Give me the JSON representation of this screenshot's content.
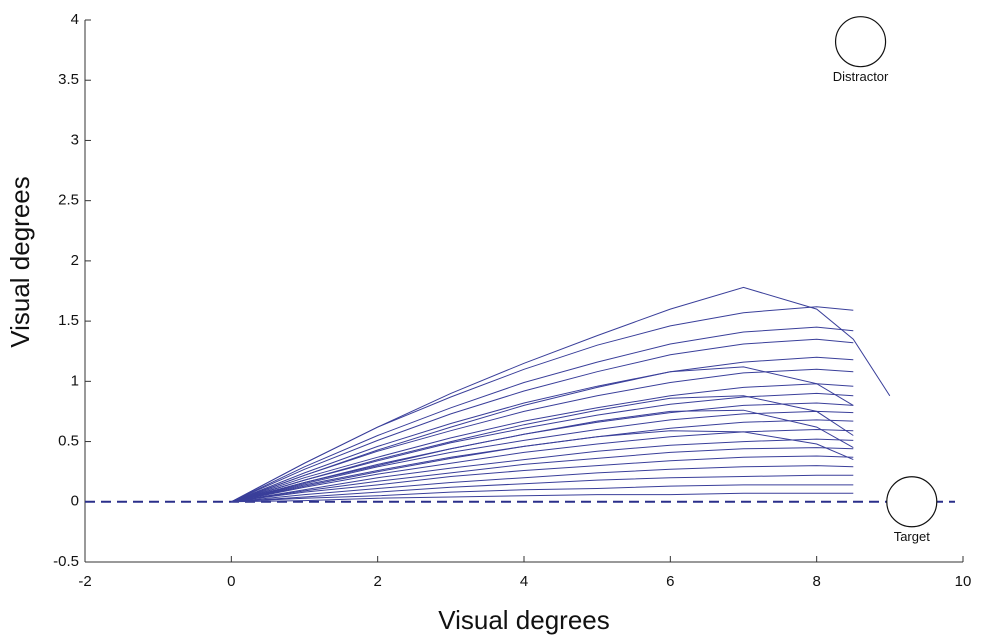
{
  "chart_data": {
    "type": "line",
    "x_label": "Visual degrees",
    "y_label": "Visual degrees",
    "xlim": [
      -2,
      10
    ],
    "xticks": [
      -2,
      0,
      2,
      4,
      6,
      8,
      10
    ],
    "ylim": [
      -0.5,
      4
    ],
    "yticks": [
      -0.5,
      0,
      0.5,
      1,
      1.5,
      2,
      2.5,
      3,
      3.5,
      4
    ],
    "color": "#3a3f9a",
    "reference_line": {
      "y": 0,
      "color": "#2a2f8a"
    },
    "annotations": [
      {
        "text": "Distractor",
        "x": 8.6,
        "y": 3.82
      },
      {
        "text": "Target",
        "x": 9.3,
        "y": 0
      }
    ],
    "x": [
      0,
      1,
      2,
      3,
      4,
      5,
      6,
      7,
      8,
      8.5,
      9
    ],
    "series": [
      {
        "values": [
          0,
          0.32,
          0.62,
          0.9,
          1.15,
          1.38,
          1.6,
          1.78,
          1.6,
          1.35,
          0.88
        ]
      },
      {
        "values": [
          0,
          0.32,
          0.62,
          0.87,
          1.1,
          1.3,
          1.46,
          1.57,
          1.62,
          1.59,
          null
        ]
      },
      {
        "values": [
          0,
          0.29,
          0.55,
          0.78,
          0.99,
          1.16,
          1.31,
          1.41,
          1.45,
          1.42,
          null
        ]
      },
      {
        "values": [
          0,
          0.27,
          0.51,
          0.73,
          0.92,
          1.08,
          1.22,
          1.31,
          1.35,
          1.32,
          null
        ]
      },
      {
        "values": [
          0,
          0.24,
          0.46,
          0.65,
          0.82,
          0.96,
          1.08,
          1.16,
          1.2,
          1.18,
          null
        ]
      },
      {
        "values": [
          0,
          0.22,
          0.43,
          0.62,
          0.8,
          0.95,
          1.08,
          1.12,
          0.98,
          0.8,
          null
        ]
      },
      {
        "values": [
          0,
          0.22,
          0.42,
          0.59,
          0.75,
          0.88,
          0.99,
          1.07,
          1.1,
          1.08,
          null
        ]
      },
      {
        "values": [
          0,
          0.2,
          0.37,
          0.53,
          0.67,
          0.78,
          0.88,
          0.95,
          0.98,
          0.96,
          null
        ]
      },
      {
        "values": [
          0,
          0.18,
          0.35,
          0.5,
          0.64,
          0.76,
          0.86,
          0.88,
          0.75,
          0.55,
          null
        ]
      },
      {
        "values": [
          0,
          0.18,
          0.34,
          0.49,
          0.61,
          0.72,
          0.81,
          0.87,
          0.9,
          0.88,
          null
        ]
      },
      {
        "values": [
          0,
          0.16,
          0.31,
          0.44,
          0.56,
          0.66,
          0.74,
          0.8,
          0.82,
          0.8,
          null
        ]
      },
      {
        "values": [
          0,
          0.16,
          0.3,
          0.44,
          0.56,
          0.67,
          0.75,
          0.76,
          0.62,
          0.45,
          null
        ]
      },
      {
        "values": [
          0,
          0.15,
          0.29,
          0.41,
          0.51,
          0.6,
          0.68,
          0.73,
          0.75,
          0.74,
          null
        ]
      },
      {
        "values": [
          0,
          0.14,
          0.26,
          0.37,
          0.46,
          0.54,
          0.61,
          0.66,
          0.68,
          0.67,
          null
        ]
      },
      {
        "values": [
          0,
          0.13,
          0.25,
          0.36,
          0.46,
          0.54,
          0.59,
          0.58,
          0.48,
          0.35,
          null
        ]
      },
      {
        "values": [
          0,
          0.12,
          0.23,
          0.32,
          0.41,
          0.48,
          0.54,
          0.58,
          0.6,
          0.59,
          null
        ]
      },
      {
        "values": [
          0,
          0.1,
          0.2,
          0.28,
          0.35,
          0.42,
          0.47,
          0.5,
          0.52,
          0.51,
          null
        ]
      },
      {
        "values": [
          0,
          0.09,
          0.17,
          0.24,
          0.31,
          0.36,
          0.41,
          0.44,
          0.45,
          0.44,
          null
        ]
      },
      {
        "values": [
          0,
          0.08,
          0.14,
          0.21,
          0.26,
          0.3,
          0.34,
          0.37,
          0.38,
          0.37,
          null
        ]
      },
      {
        "values": [
          0,
          0.06,
          0.11,
          0.16,
          0.2,
          0.24,
          0.27,
          0.29,
          0.3,
          0.29,
          null
        ]
      },
      {
        "values": [
          0,
          0.04,
          0.08,
          0.12,
          0.15,
          0.18,
          0.2,
          0.21,
          0.22,
          0.22,
          null
        ]
      },
      {
        "values": [
          0,
          0.03,
          0.05,
          0.08,
          0.1,
          0.11,
          0.13,
          0.14,
          0.14,
          0.14,
          null
        ]
      },
      {
        "values": [
          0,
          0.01,
          0.03,
          0.04,
          0.05,
          0.06,
          0.06,
          0.07,
          0.07,
          0.07,
          null
        ]
      }
    ]
  }
}
